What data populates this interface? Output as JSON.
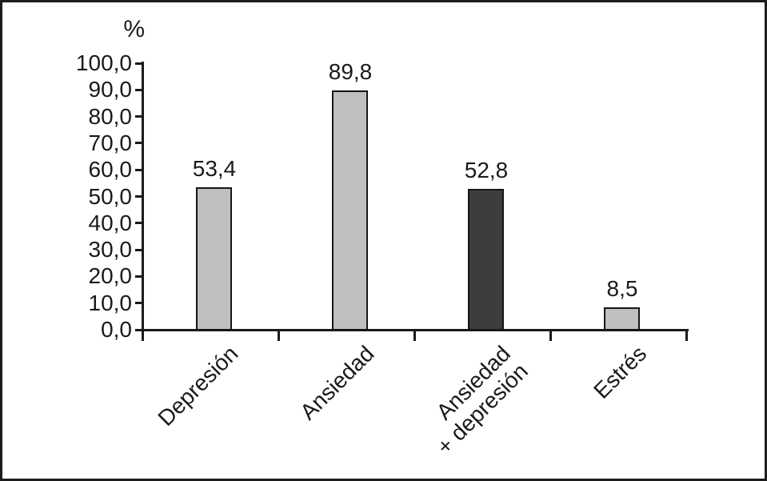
{
  "figure": {
    "background": "#ffffff",
    "border_color": "#1c1c1c",
    "axis_color": "#1a1a1a",
    "text_color": "#1a1a1a"
  },
  "chart_data": {
    "type": "bar",
    "title": "",
    "xlabel": "",
    "ylabel": "%",
    "ylim": [
      0,
      100
    ],
    "ytick_step": 10,
    "ytick_labels": [
      "100,0",
      "90,0",
      "80,0",
      "70,0",
      "60,0",
      "50,0",
      "40,0",
      "30,0",
      "20,0",
      "10,0",
      "0,0"
    ],
    "grid": false,
    "legend": null,
    "categories": [
      "Depresión",
      "Ansiedad",
      "Ansiedad + depresión",
      "Estrés"
    ],
    "values": [
      53.4,
      89.8,
      52.8,
      8.5
    ],
    "bar_border_color": "#161616",
    "bars": [
      {
        "category_lines": [
          "Depresión"
        ],
        "value": 53.4,
        "value_label": "53,4",
        "color": "#bfbfbf"
      },
      {
        "category_lines": [
          "Ansiedad"
        ],
        "value": 89.8,
        "value_label": "89,8",
        "color": "#bfbfbf"
      },
      {
        "category_lines": [
          "Ansiedad",
          "+ depresión"
        ],
        "value": 52.8,
        "value_label": "52,8",
        "color": "#3d3d3d"
      },
      {
        "category_lines": [
          "Estrés"
        ],
        "value": 8.5,
        "value_label": "8,5",
        "color": "#bfbfbf"
      }
    ]
  }
}
